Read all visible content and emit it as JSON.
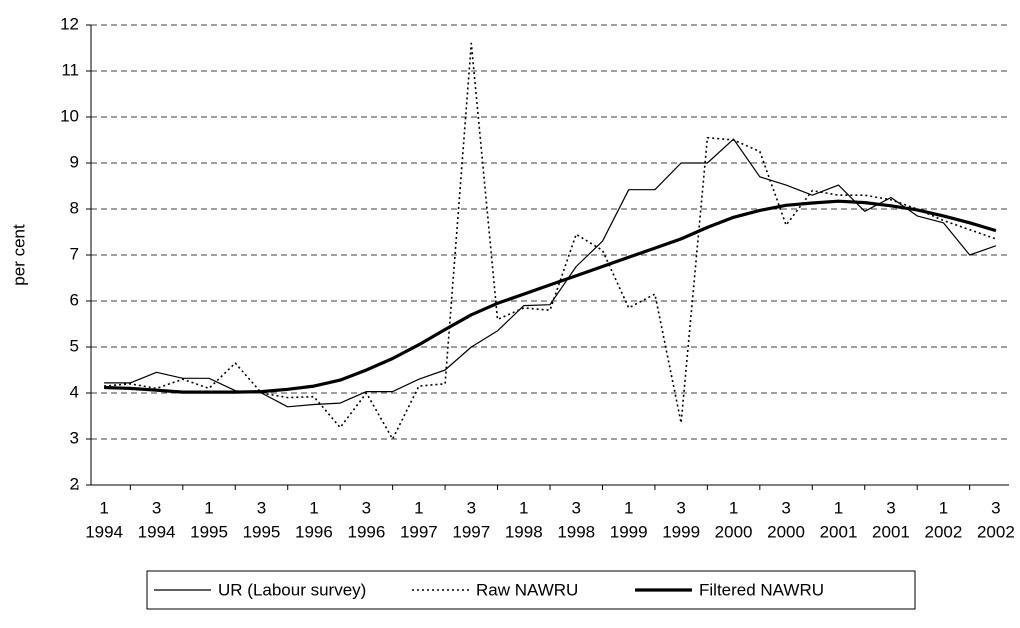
{
  "chart_data": {
    "type": "line",
    "y_label": "per cent",
    "categories": [
      [
        "1",
        "1994"
      ],
      null,
      [
        "3",
        "1994"
      ],
      null,
      [
        "1",
        "1995"
      ],
      null,
      [
        "3",
        "1995"
      ],
      null,
      [
        "1",
        "1996"
      ],
      null,
      [
        "3",
        "1996"
      ],
      null,
      [
        "1",
        "1997"
      ],
      null,
      [
        "3",
        "1997"
      ],
      null,
      [
        "1",
        "1998"
      ],
      null,
      [
        "3",
        "1998"
      ],
      null,
      [
        "1",
        "1999"
      ],
      null,
      [
        "3",
        "1999"
      ],
      null,
      [
        "1",
        "2000"
      ],
      null,
      [
        "3",
        "2000"
      ],
      null,
      [
        "1",
        "2001"
      ],
      null,
      [
        "3",
        "2001"
      ],
      null,
      [
        "1",
        "2002"
      ],
      null,
      [
        "3",
        "2002"
      ]
    ],
    "series": [
      {
        "name": "UR (Labour survey)",
        "color": "#000000",
        "style": "solid",
        "width": 1.2,
        "values": [
          4.22,
          4.22,
          4.45,
          4.32,
          4.32,
          4.05,
          4.0,
          3.7,
          3.75,
          3.78,
          4.03,
          4.03,
          4.3,
          4.5,
          5.0,
          5.35,
          5.9,
          5.92,
          6.75,
          7.3,
          8.42,
          8.42,
          9.0,
          9.0,
          9.52,
          8.7,
          8.52,
          8.3,
          8.52,
          7.95,
          8.25,
          7.85,
          7.7,
          7.0,
          7.2
        ]
      },
      {
        "name": "Raw NAWRU",
        "color": "#000000",
        "style": "dotted",
        "width": 1.6,
        "values": [
          4.15,
          4.2,
          4.1,
          4.3,
          4.1,
          4.65,
          4.0,
          3.9,
          3.92,
          3.25,
          4.0,
          3.0,
          4.15,
          4.2,
          11.6,
          5.6,
          5.85,
          5.8,
          7.45,
          7.1,
          5.85,
          6.15,
          3.35,
          9.55,
          9.5,
          9.25,
          7.65,
          8.4,
          8.3,
          8.3,
          8.2,
          8.0,
          7.75,
          7.55,
          7.35
        ]
      },
      {
        "name": "Filtered NAWRU",
        "color": "#000000",
        "style": "solid",
        "width": 3.2,
        "values": [
          4.12,
          4.1,
          4.06,
          4.02,
          4.02,
          4.02,
          4.03,
          4.08,
          4.15,
          4.28,
          4.5,
          4.75,
          5.05,
          5.38,
          5.7,
          5.95,
          6.15,
          6.35,
          6.55,
          6.75,
          6.95,
          7.15,
          7.35,
          7.6,
          7.82,
          7.97,
          8.08,
          8.13,
          8.17,
          8.14,
          8.07,
          7.98,
          7.85,
          7.7,
          7.53
        ]
      }
    ],
    "ylim": [
      2,
      12
    ],
    "yticks": [
      2,
      3,
      4,
      5,
      6,
      7,
      8,
      9,
      10,
      11,
      12
    ],
    "grid": true,
    "legend": "bottom"
  }
}
